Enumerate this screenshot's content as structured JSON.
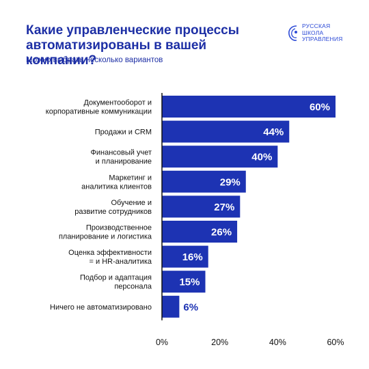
{
  "header": {
    "title_line1": "Какие управленческие процессы",
    "title_line2": "автоматизированы в вашей компании?",
    "subtitle": "Можно выбрать несколько вариантов"
  },
  "logo": {
    "line1": "РУССКАЯ",
    "line2": "ШКОЛА",
    "line3": "УПРАВЛЕНИЯ"
  },
  "colors": {
    "bar": "#1d33b3",
    "title": "#1d2fa5",
    "value_outside": "#1d33b3",
    "value_inside": "#ffffff"
  },
  "chart_data": {
    "type": "bar",
    "orientation": "horizontal",
    "categories": [
      [
        "Документооборот и",
        "корпоративные коммуникации"
      ],
      [
        "Продажи и CRM"
      ],
      [
        "Финансовый учет",
        "и планирование"
      ],
      [
        "Маркетинг и",
        "аналитика клиентов"
      ],
      [
        "Обучение и",
        "развитие сотрудников"
      ],
      [
        "Производственное",
        "планирование и логистика"
      ],
      [
        "Оценка эффективности",
        "= и HR-аналитика"
      ],
      [
        "Подбор и адаптация",
        "персонала"
      ],
      [
        "Ничего не автоматизировано"
      ]
    ],
    "values": [
      60,
      44,
      40,
      29,
      27,
      26,
      16,
      15,
      6
    ],
    "value_labels": [
      "60%",
      "44%",
      "40%",
      "29%",
      "27%",
      "26%",
      "16%",
      "15%",
      "6%"
    ],
    "xlim": [
      0,
      60
    ],
    "xticks": [
      0,
      20,
      40,
      60
    ],
    "xtick_labels": [
      "0%",
      "20%",
      "40%",
      "60%"
    ],
    "grid": false,
    "legend": "none"
  }
}
